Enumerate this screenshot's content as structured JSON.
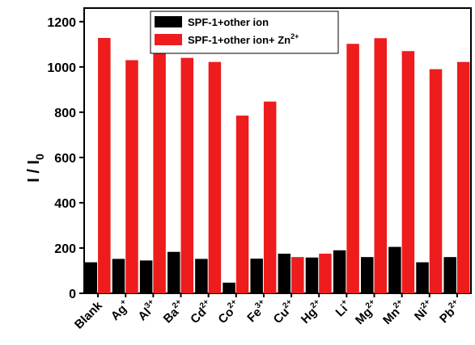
{
  "chart_data": {
    "type": "bar",
    "ylabel": {
      "main": "I / I",
      "sub": "0"
    },
    "ylim": [
      0,
      1260
    ],
    "yticks": [
      0,
      200,
      400,
      600,
      800,
      1000,
      1200
    ],
    "categories": [
      {
        "base": "Blank",
        "sup": ""
      },
      {
        "base": "Ag",
        "sup": "+"
      },
      {
        "base": "Al",
        "sup": "3+"
      },
      {
        "base": "Ba",
        "sup": "2+"
      },
      {
        "base": "Cd",
        "sup": "2+"
      },
      {
        "base": "Co",
        "sup": "2+"
      },
      {
        "base": "Fe",
        "sup": "3+"
      },
      {
        "base": "Cu",
        "sup": "2+"
      },
      {
        "base": "Hg",
        "sup": "2+"
      },
      {
        "base": "Li",
        "sup": "+"
      },
      {
        "base": "Mg",
        "sup": "2+"
      },
      {
        "base": "Mn",
        "sup": "2+"
      },
      {
        "base": "Ni",
        "sup": "2+"
      },
      {
        "base": "Pb",
        "sup": "2+"
      }
    ],
    "series": [
      {
        "name": "SPF-1+other ion",
        "name_sup": "",
        "color": "#000000",
        "values": [
          137,
          152,
          145,
          183,
          152,
          47,
          153,
          175,
          158,
          190,
          160,
          205,
          137,
          160
        ]
      },
      {
        "name": "SPF-1+other ion+ Zn",
        "name_sup": "2+",
        "color": "#ee1c1c",
        "values": [
          1128,
          1030,
          1087,
          1040,
          1022,
          785,
          847,
          160,
          175,
          1102,
          1127,
          1070,
          990,
          1022
        ]
      }
    ],
    "legend_position": "top-center",
    "grid": false
  }
}
